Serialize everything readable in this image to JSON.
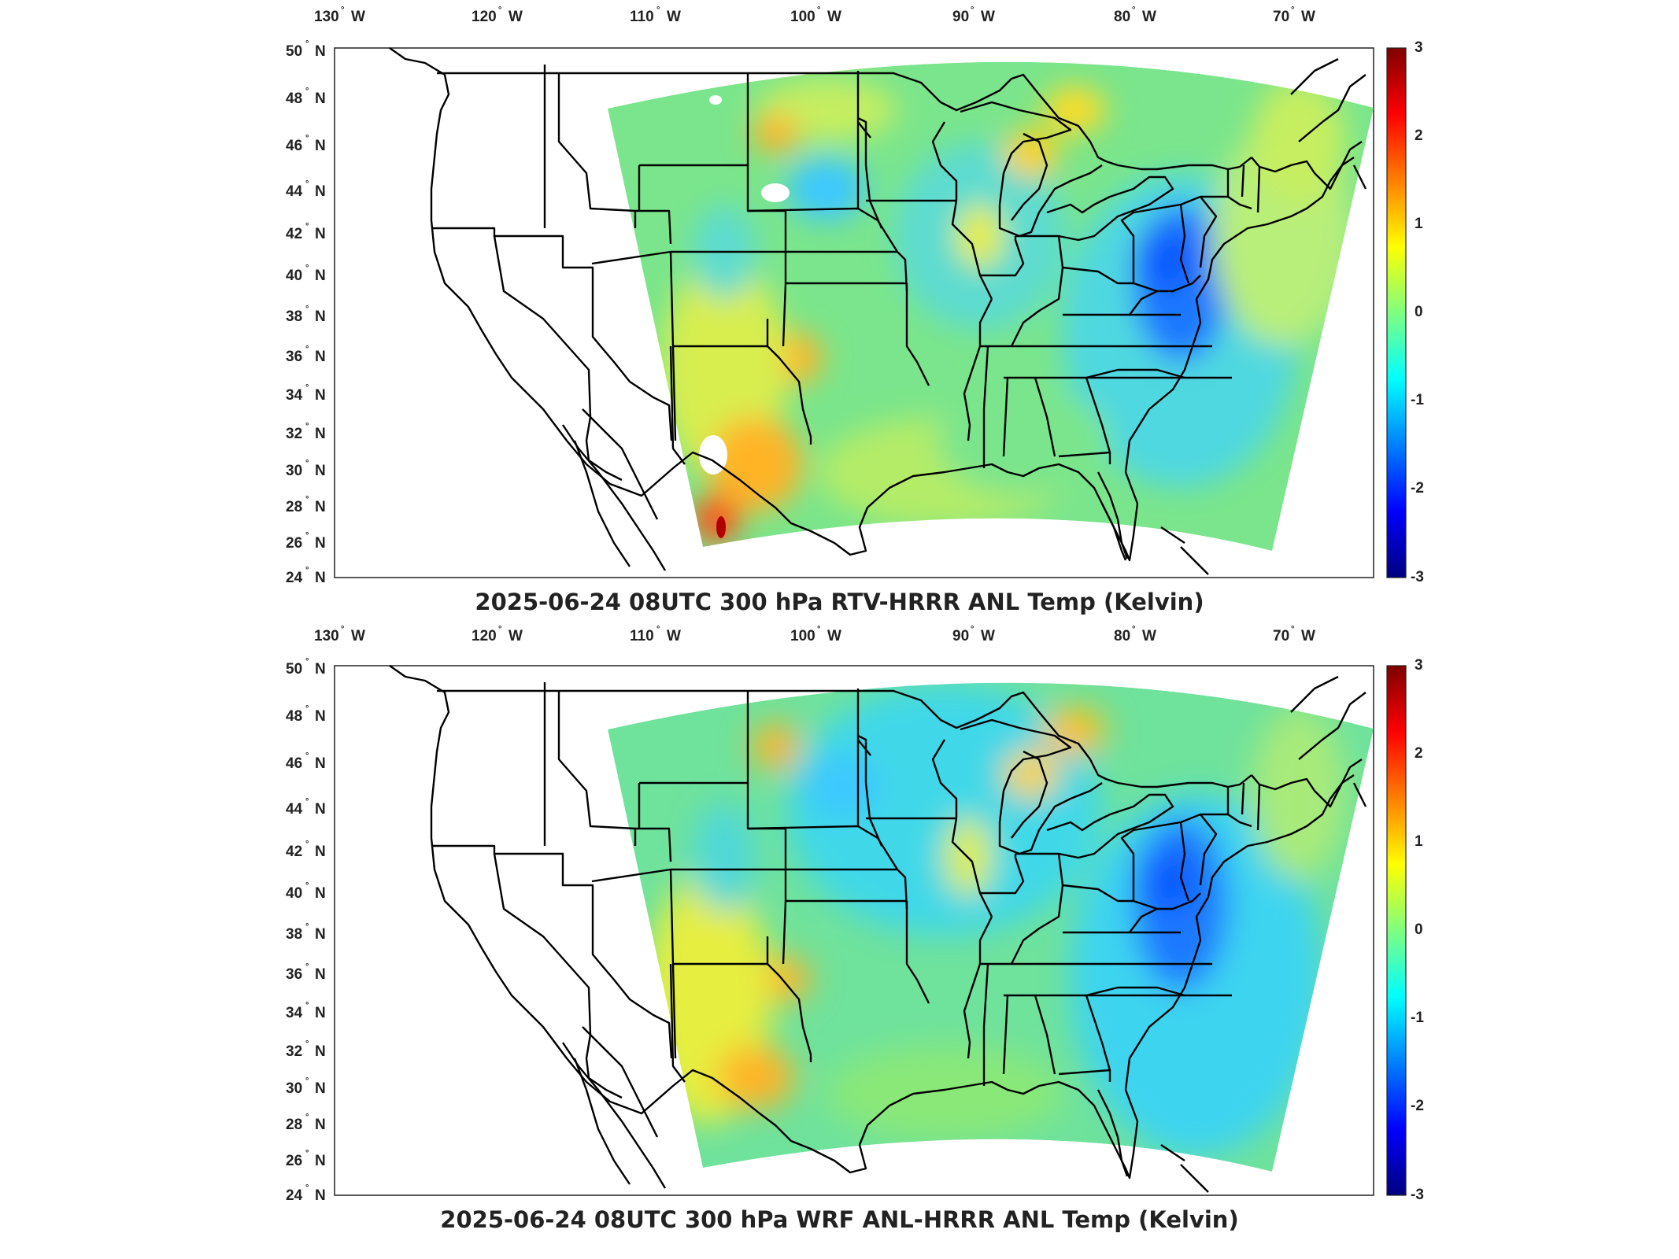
{
  "panels": [
    {
      "title": "2025-06-24 08UTC 300 hPa RTV-HRRR ANL Temp (Kelvin)",
      "lon_labels": [
        "130",
        "120",
        "110",
        "100",
        "90",
        "80",
        "70"
      ],
      "lon_suffix": "W",
      "lat_labels": [
        "50",
        "48",
        "46",
        "44",
        "42",
        "40",
        "38",
        "36",
        "34",
        "32",
        "30",
        "28",
        "26",
        "24"
      ],
      "lat_suffix": "N",
      "colorbar": {
        "ticks": [
          "3",
          "2",
          "1",
          "0",
          "-1",
          "-2",
          "-3"
        ],
        "min": -3,
        "max": 3
      }
    },
    {
      "title": "2025-06-24 08UTC 300 hPa WRF ANL-HRRR ANL Temp (Kelvin)",
      "lon_labels": [
        "130",
        "120",
        "110",
        "100",
        "90",
        "80",
        "70"
      ],
      "lon_suffix": "W",
      "lat_labels": [
        "50",
        "48",
        "46",
        "44",
        "42",
        "40",
        "38",
        "36",
        "34",
        "32",
        "30",
        "28",
        "26",
        "24"
      ],
      "lat_suffix": "N",
      "colorbar": {
        "ticks": [
          "3",
          "2",
          "1",
          "0",
          "-1",
          "-2",
          "-3"
        ],
        "min": -3,
        "max": 3
      }
    }
  ],
  "colormap": {
    "name": "jet",
    "stops": [
      "#00007f",
      "#0000ff",
      "#007fff",
      "#00ffff",
      "#7fff7f",
      "#ffff00",
      "#ff7f00",
      "#ff0000",
      "#7f0000"
    ]
  },
  "field_colors": {
    "base": "#78e68c",
    "cool": "#3cd2ff",
    "cold": "#1e78ff",
    "warm": "#f5e632",
    "hot": "#ff8c1e"
  }
}
